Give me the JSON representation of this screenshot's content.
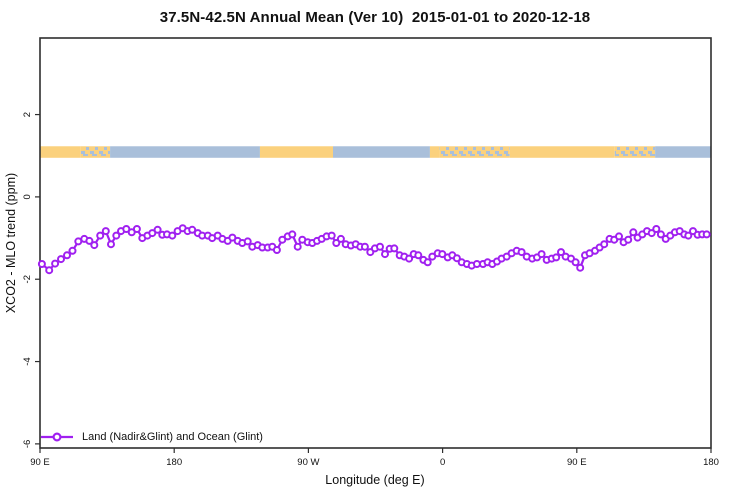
{
  "figure": {
    "title": "37.5N-42.5N Annual Mean (Ver 10)  2015-01-01 to 2020-12-18",
    "xlabel": "Longitude (deg E)",
    "ylabel": "XCO2 - MLO trend (ppm)"
  },
  "legend": {
    "label": "Land (Nadir&Glint) and Ocean (Glint)"
  },
  "colors": {
    "series": "#A020F0",
    "marker_fill": "#FFFFFF",
    "land": "#FBD17D",
    "ocean": "#A9BFDA",
    "axis": "#2E2E2E",
    "text": "#111111"
  },
  "chart_data": {
    "type": "line",
    "title": "37.5N-42.5N Annual Mean (Ver 10)  2015-01-01 to 2020-12-18",
    "xlabel": "Longitude (deg E)",
    "ylabel": "XCO2 - MLO trend (ppm)",
    "xlim": [
      90,
      540
    ],
    "ylim": [
      -6.1,
      3.86
    ],
    "grid": false,
    "legend_position": "bottom-left",
    "x_ticks": [
      {
        "value": 90,
        "label": "90 E"
      },
      {
        "value": 180,
        "label": "180"
      },
      {
        "value": 270,
        "label": "90 W"
      },
      {
        "value": 360,
        "label": "0"
      },
      {
        "value": 450,
        "label": "90 E"
      },
      {
        "value": 540,
        "label": "180"
      }
    ],
    "y_ticks": [
      {
        "value": 2,
        "label": "2"
      },
      {
        "value": 0,
        "label": "0"
      },
      {
        "value": -2,
        "label": "-2"
      },
      {
        "value": -4,
        "label": "-4"
      },
      {
        "value": -6,
        "label": "-6"
      }
    ],
    "surface_band": {
      "y_top": 1.23,
      "y_bottom": 0.95,
      "segments": [
        {
          "from": 90,
          "to": 117,
          "type": "land"
        },
        {
          "from": 117,
          "to": 137,
          "type": "mixed"
        },
        {
          "from": 137,
          "to": 237.5,
          "type": "ocean"
        },
        {
          "from": 237.5,
          "to": 286.5,
          "type": "land"
        },
        {
          "from": 286.5,
          "to": 351.5,
          "type": "ocean"
        },
        {
          "from": 351.5,
          "to": 358,
          "type": "land"
        },
        {
          "from": 358,
          "to": 405,
          "type": "mixed"
        },
        {
          "from": 405,
          "to": 475.5,
          "type": "land"
        },
        {
          "from": 475.5,
          "to": 502.5,
          "type": "mixed"
        },
        {
          "from": 502.5,
          "to": 540,
          "type": "ocean"
        }
      ]
    },
    "series": [
      {
        "name": "Land (Nadir&Glint) and Ocean (Glint)",
        "marker": "open-circle",
        "x_lon_degE": [
          91.3,
          96.2,
          100.1,
          104.1,
          108.1,
          111.8,
          115.7,
          119.7,
          123.1,
          126.4,
          130.4,
          134.1,
          137.6,
          141.2,
          144.3,
          147.9,
          151.5,
          155.0,
          158.6,
          162.0,
          165.3,
          168.9,
          172.0,
          175.2,
          178.7,
          182.3,
          185.7,
          189.0,
          192.1,
          195.8,
          198.8,
          202.5,
          205.5,
          209.2,
          212.3,
          215.9,
          219.0,
          222.6,
          225.7,
          229.3,
          232.4,
          236.0,
          239.1,
          242.7,
          245.8,
          248.9,
          252.5,
          256.1,
          259.2,
          262.8,
          265.9,
          269.5,
          272.6,
          275.8,
          278.9,
          282.2,
          285.6,
          288.7,
          291.8,
          295.0,
          298.5,
          301.7,
          304.8,
          307.9,
          311.5,
          314.6,
          318.0,
          321.4,
          324.5,
          327.6,
          331.2,
          334.3,
          337.5,
          340.6,
          343.7,
          347.1,
          350.0,
          353.1,
          356.7,
          359.8,
          363.4,
          366.5,
          369.6,
          372.8,
          376.3,
          379.5,
          383.0,
          387.1,
          390.2,
          393.3,
          396.5,
          399.6,
          403.0,
          406.3,
          409.7,
          413.0,
          416.4,
          420.1,
          423.3,
          426.4,
          429.8,
          433.2,
          436.2,
          439.4,
          442.5,
          446.1,
          449.2,
          452.3,
          455.5,
          458.6,
          462.2,
          465.3,
          468.4,
          472.0,
          475.1,
          478.3,
          481.4,
          484.5,
          487.9,
          490.8,
          493.9,
          497.1,
          500.2,
          503.3,
          506.4,
          509.6,
          512.7,
          515.8,
          519.0,
          522.1,
          524.8,
          527.9,
          531.0,
          534.1,
          537.1
        ],
        "y_ppm": [
          -1.63,
          -1.78,
          -1.62,
          -1.51,
          -1.42,
          -1.31,
          -1.08,
          -1.02,
          -1.07,
          -1.17,
          -0.94,
          -0.83,
          -1.15,
          -0.94,
          -0.83,
          -0.78,
          -0.86,
          -0.78,
          -1.0,
          -0.94,
          -0.88,
          -0.8,
          -0.92,
          -0.91,
          -0.94,
          -0.83,
          -0.76,
          -0.83,
          -0.8,
          -0.88,
          -0.94,
          -0.94,
          -1.0,
          -0.94,
          -1.02,
          -1.07,
          -0.99,
          -1.07,
          -1.12,
          -1.08,
          -1.21,
          -1.17,
          -1.23,
          -1.23,
          -1.21,
          -1.29,
          -1.04,
          -0.96,
          -0.91,
          -1.21,
          -1.04,
          -1.1,
          -1.12,
          -1.07,
          -1.02,
          -0.96,
          -0.94,
          -1.12,
          -1.02,
          -1.15,
          -1.18,
          -1.15,
          -1.21,
          -1.21,
          -1.34,
          -1.25,
          -1.21,
          -1.39,
          -1.26,
          -1.25,
          -1.42,
          -1.45,
          -1.5,
          -1.39,
          -1.42,
          -1.53,
          -1.59,
          -1.45,
          -1.37,
          -1.39,
          -1.47,
          -1.42,
          -1.49,
          -1.59,
          -1.63,
          -1.67,
          -1.63,
          -1.63,
          -1.59,
          -1.63,
          -1.57,
          -1.5,
          -1.45,
          -1.37,
          -1.31,
          -1.34,
          -1.45,
          -1.5,
          -1.47,
          -1.39,
          -1.53,
          -1.5,
          -1.47,
          -1.34,
          -1.45,
          -1.5,
          -1.59,
          -1.72,
          -1.42,
          -1.37,
          -1.31,
          -1.23,
          -1.15,
          -1.02,
          -1.04,
          -0.96,
          -1.1,
          -1.04,
          -0.86,
          -0.99,
          -0.91,
          -0.83,
          -0.88,
          -0.78,
          -0.91,
          -1.02,
          -0.94,
          -0.86,
          -0.83,
          -0.91,
          -0.94,
          -0.83,
          -0.92,
          -0.91,
          -0.91
        ]
      }
    ]
  }
}
